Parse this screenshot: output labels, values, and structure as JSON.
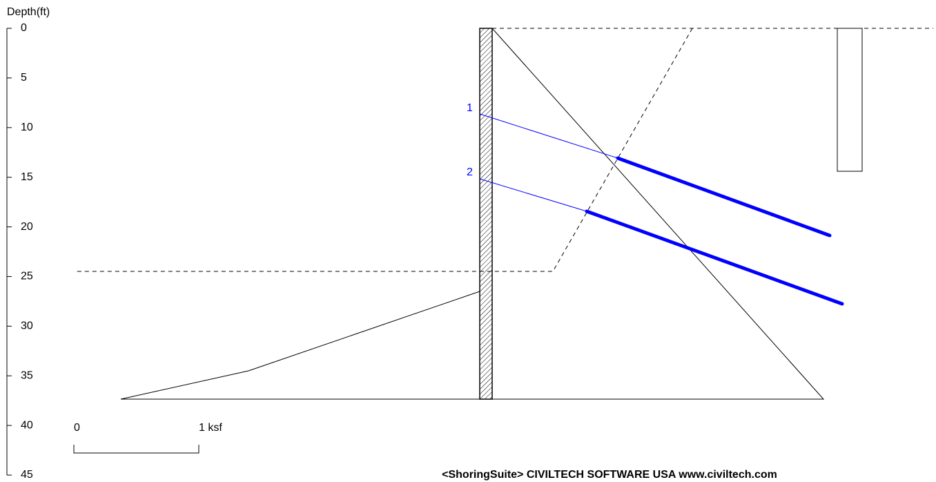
{
  "depth_axis": {
    "label": "Depth(ft)",
    "ticks": [
      0,
      5,
      10,
      15,
      20,
      25,
      30,
      35,
      40,
      45
    ]
  },
  "anchors": [
    {
      "label": "1"
    },
    {
      "label": "2"
    }
  ],
  "scale_bar": {
    "start_label": "0",
    "end_label": "1 ksf"
  },
  "footer": "<ShoringSuite>   CIVILTECH SOFTWARE  USA   www.civiltech.com"
}
